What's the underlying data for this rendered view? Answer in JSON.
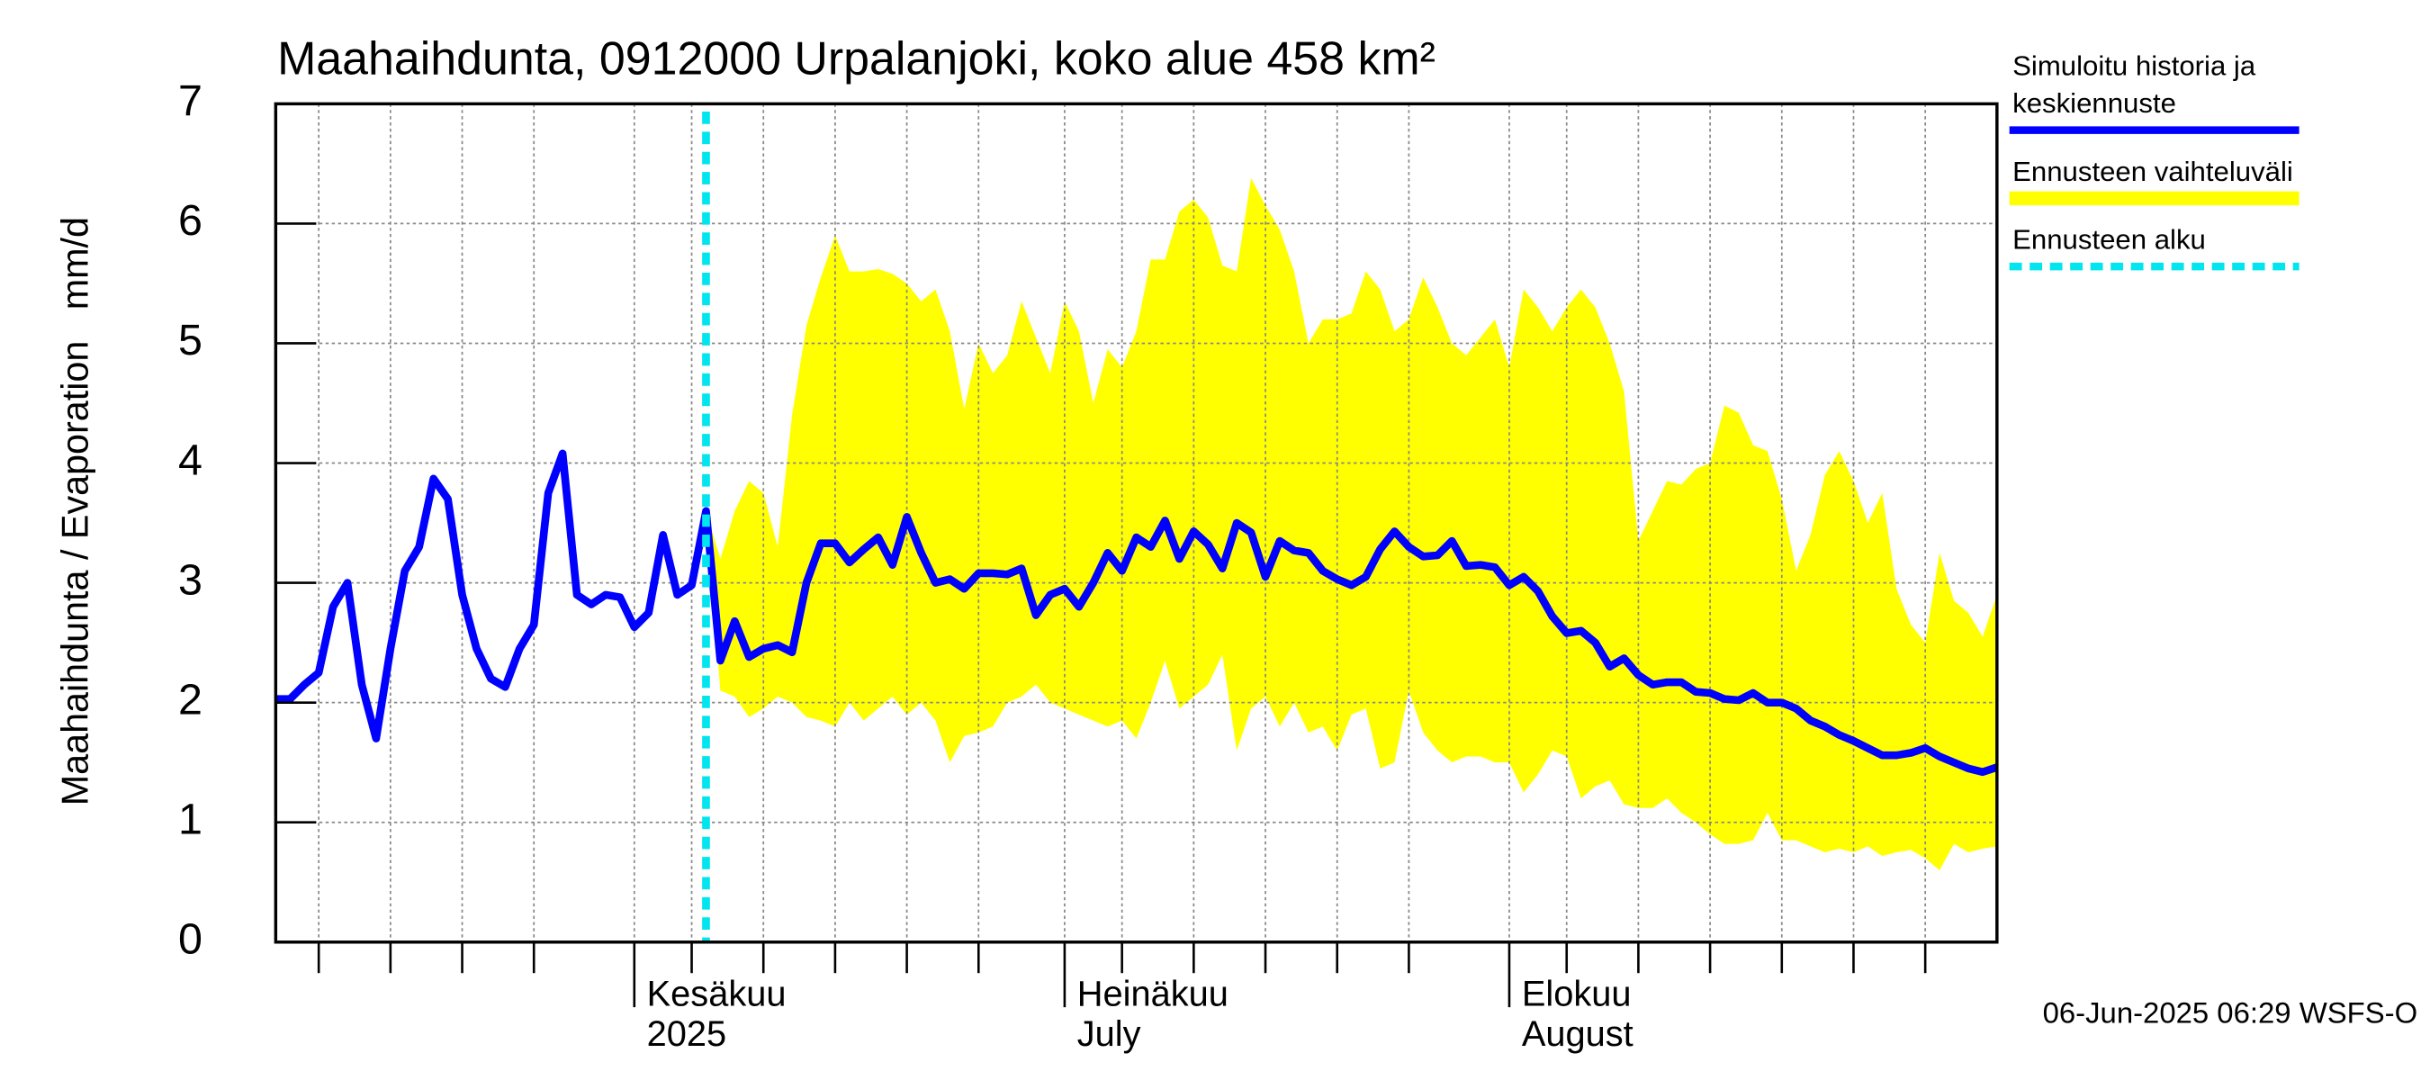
{
  "chart_data": {
    "type": "line",
    "title": "Maahaihdunta, 0912000 Urpalanjoki, koko alue 458 km²",
    "y_label": "Maahaihdunta / Evaporation   mm/d",
    "footer": "06-Jun-2025 06:29 WSFS-O",
    "xlim": [
      0,
      120
    ],
    "ylim": [
      0,
      7
    ],
    "yticks": [
      0,
      1,
      2,
      3,
      4,
      5,
      6,
      7
    ],
    "xticks": [
      {
        "value": 25,
        "label": "Kesäkuu"
      },
      {
        "value": 55,
        "label": "Heinäkuu"
      },
      {
        "value": 86,
        "label": "Elokuu"
      }
    ],
    "xtick_sublabels": [
      "2025",
      "July",
      "August"
    ],
    "xgrid": [
      3,
      8,
      13,
      18,
      29,
      34,
      39,
      44,
      49,
      59,
      64,
      69,
      74,
      79,
      90,
      95,
      100,
      105,
      110,
      115
    ],
    "grid": true,
    "forecast_start": {
      "name": "Ennusteen alku",
      "color": "#00e5ee",
      "x": 30
    },
    "series": [
      {
        "name": "Simuloitu historia ja keskiennuste",
        "color": "#0000ff",
        "values": [
          2.03,
          2.03,
          2.15,
          2.25,
          2.8,
          3.0,
          2.15,
          1.7,
          2.45,
          3.1,
          3.3,
          3.87,
          3.7,
          2.9,
          2.45,
          2.2,
          2.13,
          2.45,
          2.65,
          3.75,
          4.08,
          2.9,
          2.82,
          2.9,
          2.88,
          2.63,
          2.75,
          3.4,
          2.9,
          2.98,
          3.6,
          2.35,
          2.68,
          2.38,
          2.45,
          2.48,
          2.42,
          3.0,
          3.33,
          3.33,
          3.17,
          3.28,
          3.38,
          3.15,
          3.55,
          3.25,
          3.0,
          3.03,
          2.95,
          3.08,
          3.08,
          3.07,
          3.12,
          2.73,
          2.9,
          2.95,
          2.8,
          3.0,
          3.25,
          3.1,
          3.38,
          3.3,
          3.52,
          3.2,
          3.43,
          3.32,
          3.12,
          3.5,
          3.42,
          3.05,
          3.35,
          3.27,
          3.25,
          3.1,
          3.03,
          2.98,
          3.05,
          3.28,
          3.43,
          3.3,
          3.22,
          3.23,
          3.35,
          3.14,
          3.15,
          3.13,
          2.98,
          3.05,
          2.93,
          2.72,
          2.58,
          2.6,
          2.5,
          2.3,
          2.37,
          2.23,
          2.15,
          2.17,
          2.17,
          2.09,
          2.08,
          2.03,
          2.02,
          2.08,
          2.0,
          2.0,
          1.95,
          1.85,
          1.8,
          1.73,
          1.68,
          1.62,
          1.56,
          1.56,
          1.58,
          1.62,
          1.55,
          1.5,
          1.45,
          1.42,
          1.46
        ]
      },
      {
        "name": "Ennusteen vaihteluväli",
        "color": "#ffff00",
        "upper": [
          null,
          null,
          null,
          null,
          null,
          null,
          null,
          null,
          null,
          null,
          null,
          null,
          null,
          null,
          null,
          null,
          null,
          null,
          null,
          null,
          null,
          null,
          null,
          null,
          null,
          null,
          null,
          null,
          null,
          null,
          3.6,
          3.2,
          3.6,
          3.85,
          3.75,
          3.3,
          4.4,
          5.15,
          5.55,
          5.9,
          5.6,
          5.6,
          5.62,
          5.58,
          5.5,
          5.35,
          5.45,
          5.1,
          4.45,
          5.0,
          4.75,
          4.9,
          5.35,
          5.05,
          4.75,
          5.35,
          5.1,
          4.5,
          4.95,
          4.8,
          5.1,
          5.7,
          5.7,
          6.1,
          6.2,
          6.05,
          5.65,
          5.6,
          6.38,
          6.15,
          5.95,
          5.6,
          5.0,
          5.2,
          5.2,
          5.25,
          5.6,
          5.45,
          5.1,
          5.2,
          5.55,
          5.3,
          5.0,
          4.9,
          5.05,
          5.2,
          4.8,
          5.45,
          5.3,
          5.1,
          5.3,
          5.45,
          5.3,
          5.0,
          4.6,
          3.35,
          3.6,
          3.85,
          3.82,
          3.95,
          4.0,
          4.48,
          4.42,
          4.15,
          4.1,
          3.7,
          3.1,
          3.4,
          3.9,
          4.1,
          3.85,
          3.5,
          3.75,
          2.95,
          2.65,
          2.5,
          3.25,
          2.85,
          2.75,
          2.55,
          2.9
        ],
        "lower": [
          null,
          null,
          null,
          null,
          null,
          null,
          null,
          null,
          null,
          null,
          null,
          null,
          null,
          null,
          null,
          null,
          null,
          null,
          null,
          null,
          null,
          null,
          null,
          null,
          null,
          null,
          null,
          null,
          null,
          null,
          3.6,
          2.1,
          2.05,
          1.88,
          1.95,
          2.05,
          2.0,
          1.88,
          1.85,
          1.8,
          2.0,
          1.85,
          1.95,
          2.05,
          1.9,
          2.0,
          1.85,
          1.5,
          1.72,
          1.75,
          1.8,
          2.0,
          2.05,
          2.15,
          2.0,
          1.95,
          1.9,
          1.85,
          1.8,
          1.85,
          1.7,
          2.0,
          2.35,
          1.95,
          2.05,
          2.15,
          2.4,
          1.6,
          1.95,
          2.05,
          1.8,
          2.0,
          1.75,
          1.8,
          1.6,
          1.9,
          1.95,
          1.45,
          1.5,
          2.1,
          1.75,
          1.6,
          1.5,
          1.55,
          1.55,
          1.5,
          1.5,
          1.25,
          1.4,
          1.6,
          1.55,
          1.2,
          1.3,
          1.35,
          1.15,
          1.12,
          1.12,
          1.2,
          1.08,
          1.0,
          0.9,
          0.82,
          0.82,
          0.85,
          1.08,
          0.85,
          0.85,
          0.8,
          0.75,
          0.78,
          0.75,
          0.8,
          0.72,
          0.75,
          0.77,
          0.7,
          0.6,
          0.82,
          0.75,
          0.78,
          0.8
        ]
      }
    ]
  }
}
